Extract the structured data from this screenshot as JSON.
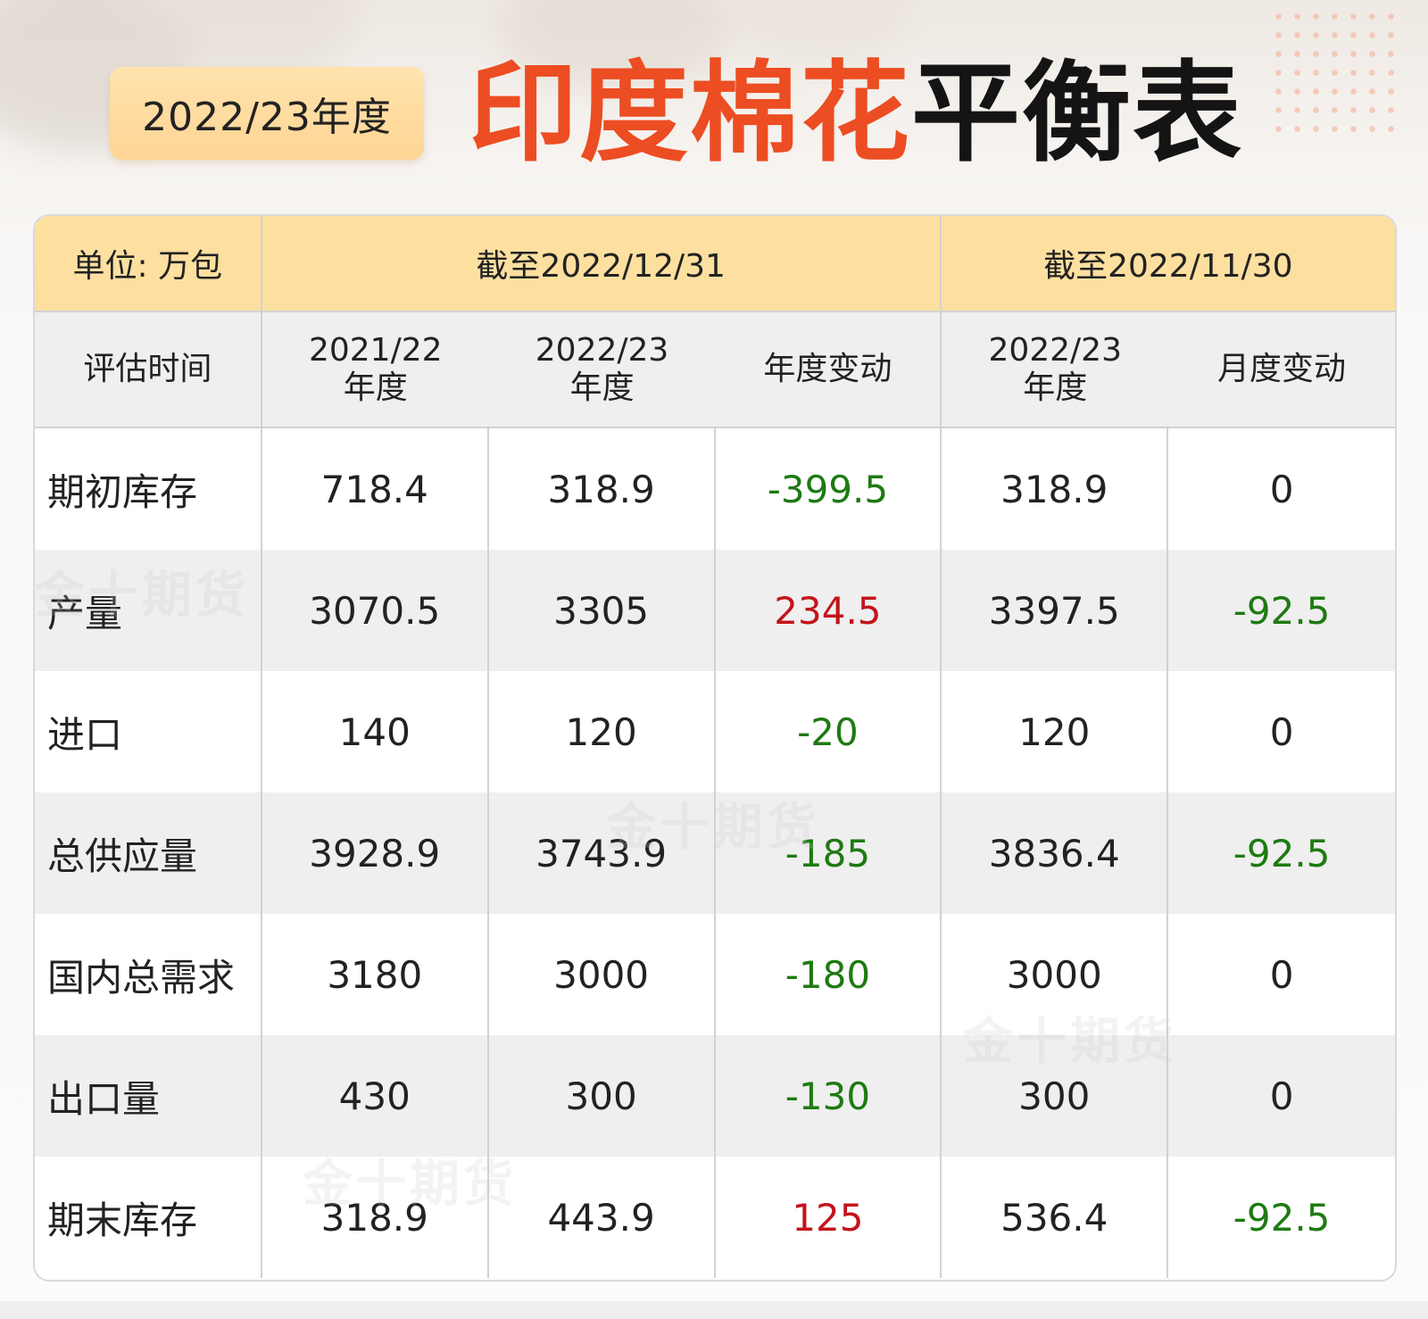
{
  "header": {
    "year_badge": "2022/23年度",
    "title_accent": "印度棉花",
    "title_dark": "平衡表"
  },
  "watermark": "金十期货",
  "table": {
    "unit_label": "单位: 万包",
    "group1_label": "截至2022/12/31",
    "group2_label": "截至2022/11/30",
    "eval_label": "评估时间",
    "col1_line1": "2021/22",
    "col1_line2": "年度",
    "col2_line1": "2022/23",
    "col2_line2": "年度",
    "col3": "年度变动",
    "col4_line1": "2022/23",
    "col4_line2": "年度",
    "col5": "月度变动",
    "rows": [
      {
        "label": "期初库存",
        "v2122": "718.4",
        "v2223": "318.9",
        "yoy": "-399.5",
        "v2223_nov": "318.9",
        "mom": "0"
      },
      {
        "label": "产量",
        "v2122": "3070.5",
        "v2223": "3305",
        "yoy": "234.5",
        "v2223_nov": "3397.5",
        "mom": "-92.5"
      },
      {
        "label": "进口",
        "v2122": "140",
        "v2223": "120",
        "yoy": "-20",
        "v2223_nov": "120",
        "mom": "0"
      },
      {
        "label": "总供应量",
        "v2122": "3928.9",
        "v2223": "3743.9",
        "yoy": "-185",
        "v2223_nov": "3836.4",
        "mom": "-92.5"
      },
      {
        "label": "国内总需求",
        "v2122": "3180",
        "v2223": "3000",
        "yoy": "-180",
        "v2223_nov": "3000",
        "mom": "0"
      },
      {
        "label": "出口量",
        "v2122": "430",
        "v2223": "300",
        "yoy": "-130",
        "v2223_nov": "300",
        "mom": "0"
      },
      {
        "label": "期末库存",
        "v2122": "318.9",
        "v2223": "443.9",
        "yoy": "125",
        "v2223_nov": "536.4",
        "mom": "-92.5"
      }
    ]
  },
  "colors": {
    "accent": "#ec4d22",
    "increase": "#c3141c",
    "decrease": "#1e7a12",
    "header_bg": "#fde0a0",
    "badge_bg": "#ffd594"
  }
}
